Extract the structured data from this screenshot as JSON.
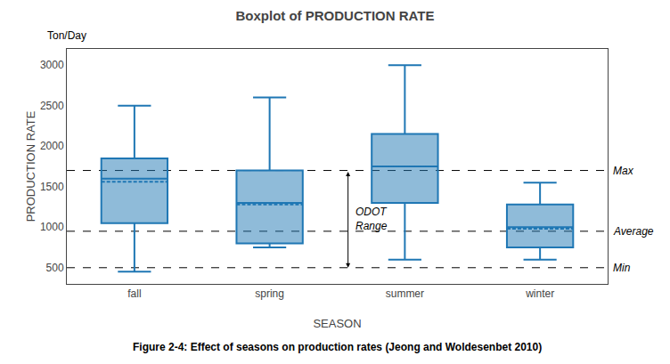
{
  "chart_data": {
    "type": "box",
    "title": "Boxplot of PRODUCTION RATE",
    "xlabel": "SEASON",
    "ylabel": "PRODUCTION RATE",
    "unit_label": "Ton/Day",
    "caption": "Figure 2-4: Effect of seasons on production rates (Jeong and Woldesenbet 2010)",
    "categories": [
      "fall",
      "spring",
      "summer",
      "winter"
    ],
    "whisker_low": [
      450,
      750,
      600,
      600
    ],
    "q1": [
      1050,
      800,
      1300,
      750
    ],
    "median": [
      1600,
      1300,
      1750,
      1000
    ],
    "q3": [
      1850,
      1700,
      2150,
      1280
    ],
    "whisker_high": [
      2500,
      2600,
      3000,
      1550
    ],
    "mean": [
      1560,
      1280,
      1750,
      980
    ],
    "hlines": [
      {
        "y": 1700,
        "label": "Max"
      },
      {
        "y": 950,
        "label": "Average"
      },
      {
        "y": 500,
        "label": "Min"
      }
    ],
    "range_arrow": {
      "label": "ODOT\nRange",
      "y_top": 1700,
      "y_bot": 500
    },
    "ylim": [
      300,
      3200
    ],
    "yticks": [
      500,
      1000,
      1500,
      2000,
      2500,
      3000
    ],
    "grid": false
  }
}
